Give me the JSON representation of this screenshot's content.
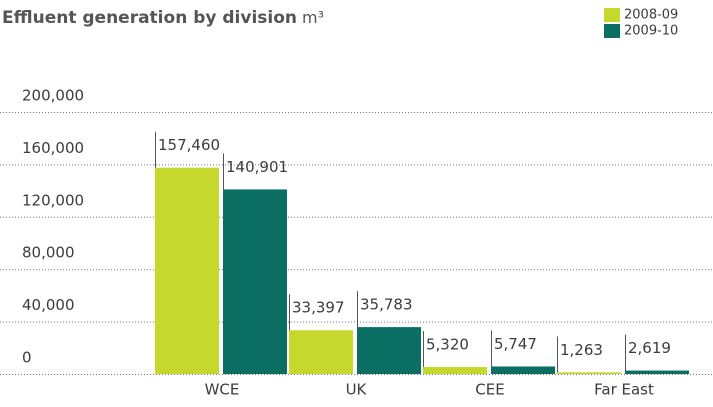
{
  "chart_data": {
    "type": "bar",
    "title": "Effluent generation by division",
    "unit": "m³",
    "categories": [
      "WCE",
      "UK",
      "CEE",
      "Far East"
    ],
    "series": [
      {
        "name": "2008-09",
        "color": "#c5d82e",
        "values": [
          157460,
          33397,
          5320,
          1263
        ],
        "value_labels": [
          "157,460",
          "33,397",
          "5,320",
          "1,263"
        ]
      },
      {
        "name": "2009-10",
        "color": "#0a6e62",
        "values": [
          140901,
          35783,
          5747,
          2619
        ],
        "value_labels": [
          "140,901",
          "35,783",
          "5,747",
          "2,619"
        ]
      }
    ],
    "ylim": [
      0,
      200000
    ],
    "yticks": [
      0,
      {
        "value": 40000,
        "label": "40,000"
      },
      {
        "value": 80000,
        "label": "80,000"
      },
      {
        "value": 120000,
        "label": "120,000"
      },
      {
        "value": 160000,
        "label": "160,000"
      },
      {
        "value": 200000,
        "label": "200,000"
      }
    ],
    "grid": true,
    "legend": "top-right"
  }
}
